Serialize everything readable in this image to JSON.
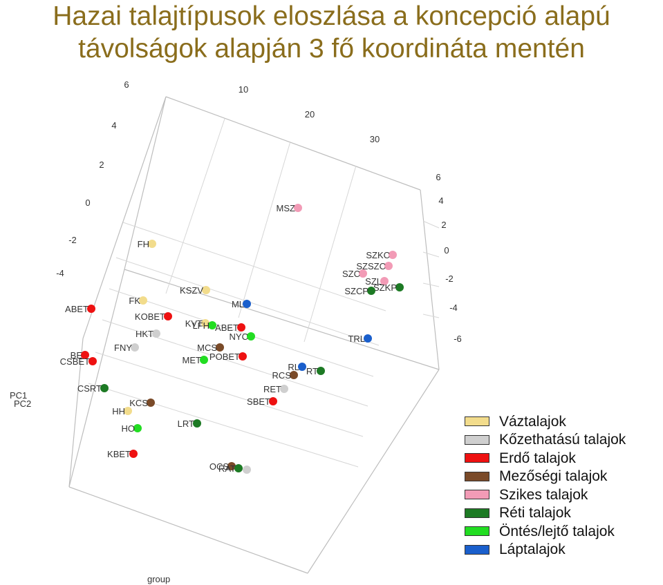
{
  "title": {
    "line1": "Hazai talajtípusok eloszlása a koncepció alapú",
    "line2": "távolságok alapján 3 fő koordináta mentén"
  },
  "chart_data": {
    "type": "scatter",
    "projection": "3d",
    "axes": {
      "front_left_ticks": [
        "6",
        "4",
        "2",
        "0",
        "-2",
        "-4"
      ],
      "top_ticks": [
        "10",
        "20",
        "30"
      ],
      "right_ticks": [
        "6",
        "4",
        "2",
        "0",
        "-2",
        "-4",
        "-6"
      ],
      "pc1_label": "PC1",
      "pc2_label": "PC2",
      "bottom_label": "group"
    },
    "legend": [
      {
        "name": "Váztalajok",
        "color": "#f2dc8c"
      },
      {
        "name": "Kőzethatású talajok",
        "color": "#cfcfcf"
      },
      {
        "name": "Erdő talajok",
        "color": "#ee1111"
      },
      {
        "name": "Mezőségi talajok",
        "color": "#7a4a28"
      },
      {
        "name": "Szikes talajok",
        "color": "#f29bb6"
      },
      {
        "name": "Réti talajok",
        "color": "#1d7a24"
      },
      {
        "name": "Öntés/lejtő talajok",
        "color": "#22dd22"
      },
      {
        "name": "Láptalajok",
        "color": "#1a5fcc"
      }
    ],
    "points": [
      {
        "label": "MSZ",
        "group": 4
      },
      {
        "label": "FH",
        "group": 0
      },
      {
        "label": "SZKC",
        "group": 4
      },
      {
        "label": "SZSZC",
        "group": 4
      },
      {
        "label": "SZC",
        "group": 4
      },
      {
        "label": "SZL",
        "group": 4
      },
      {
        "label": "SZKP",
        "group": 5
      },
      {
        "label": "SZCP",
        "group": 5
      },
      {
        "label": "KSZV",
        "group": 0
      },
      {
        "label": "FK",
        "group": 0
      },
      {
        "label": "ML",
        "group": 7
      },
      {
        "label": "ABET",
        "group": 2
      },
      {
        "label": "KOBET",
        "group": 2
      },
      {
        "label": "KVT",
        "group": 0
      },
      {
        "label": "LFH",
        "group": 6
      },
      {
        "label": "ABET",
        "group": 2
      },
      {
        "label": "NYC",
        "group": 6
      },
      {
        "label": "HKT",
        "group": 1
      },
      {
        "label": "TRL",
        "group": 7
      },
      {
        "label": "FNY",
        "group": 1
      },
      {
        "label": "MCS",
        "group": 3
      },
      {
        "label": "BE",
        "group": 2
      },
      {
        "label": "CSBET",
        "group": 2
      },
      {
        "label": "POBET",
        "group": 2
      },
      {
        "label": "MET",
        "group": 6
      },
      {
        "label": "RL",
        "group": 7
      },
      {
        "label": "RT",
        "group": 5
      },
      {
        "label": "RCS",
        "group": 3
      },
      {
        "label": "RET",
        "group": 1
      },
      {
        "label": "CSRT",
        "group": 5
      },
      {
        "label": "SBET",
        "group": 2
      },
      {
        "label": "KCS",
        "group": 3
      },
      {
        "label": "HH",
        "group": 0
      },
      {
        "label": "LRT",
        "group": 5
      },
      {
        "label": "HO",
        "group": 6
      },
      {
        "label": "KBET",
        "group": 2
      },
      {
        "label": "OCS",
        "group": 3
      },
      {
        "label": "RAT",
        "group": 5
      },
      {
        "label": "",
        "group": 1
      }
    ]
  }
}
